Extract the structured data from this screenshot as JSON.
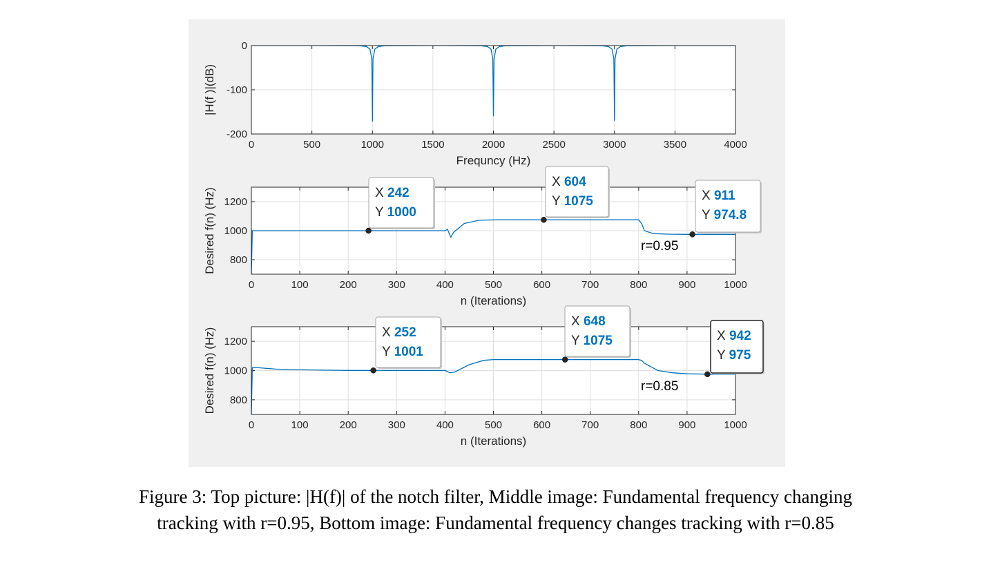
{
  "caption": {
    "line1": "Figure 3: Top picture: |H(f)| of the notch filter, Middle image: Fundamental frequency changing",
    "line2": "tracking with r=0.95, Bottom image: Fundamental frequency changes tracking with r=0.85"
  },
  "chart_data": [
    {
      "type": "line",
      "xlabel": "Frequncy (Hz)",
      "ylabel": "|H(f )|(dB)",
      "xlim": [
        0,
        4000
      ],
      "ylim": [
        -200,
        0
      ],
      "xticks": [
        "0",
        "500",
        "1000",
        "1500",
        "2000",
        "2500",
        "3000",
        "3500",
        "4000"
      ],
      "yticks": [
        "0",
        "-100",
        "-200"
      ],
      "grid": true,
      "color": "#0072bd",
      "series": [
        {
          "x": [
            0,
            500,
            900,
            950,
            980,
            995,
            1000,
            1005,
            1020,
            1050,
            1100,
            1500,
            1900,
            1950,
            1980,
            1995,
            2000,
            2005,
            2020,
            2050,
            2100,
            2500,
            2900,
            2950,
            2980,
            2995,
            3000,
            3005,
            3020,
            3050,
            3100,
            3500,
            4000
          ],
          "y": [
            0,
            0,
            -0.5,
            -2,
            -8,
            -30,
            -172,
            -30,
            -8,
            -2,
            -0.5,
            0,
            -0.5,
            -2,
            -8,
            -30,
            -160,
            -30,
            -8,
            -2,
            -0.5,
            0,
            -0.5,
            -2,
            -8,
            -30,
            -170,
            -30,
            -8,
            -2,
            -0.5,
            0,
            0
          ]
        }
      ]
    },
    {
      "type": "line",
      "xlabel": "n (Iterations)",
      "ylabel": "Desired f(n) (Hz)",
      "xlim": [
        0,
        1000
      ],
      "ylim": [
        700,
        1300
      ],
      "xticks": [
        "0",
        "100",
        "200",
        "300",
        "400",
        "500",
        "600",
        "700",
        "800",
        "900",
        "1000"
      ],
      "yticks": [
        "1200",
        "1000",
        "800"
      ],
      "grid": true,
      "color": "#0072bd",
      "annotation": "r=0.95",
      "series": [
        {
          "x": [
            0,
            2,
            5,
            100,
            200,
            300,
            400,
            405,
            412,
            418,
            440,
            470,
            500,
            600,
            700,
            800,
            806,
            812,
            830,
            860,
            900,
            950,
            1000
          ],
          "y": [
            700,
            1000,
            1000,
            1000,
            1000,
            1000,
            1000,
            1010,
            955,
            990,
            1050,
            1072,
            1075,
            1075,
            1075,
            1075,
            1050,
            1000,
            980,
            976,
            975,
            975,
            975
          ]
        }
      ],
      "datatips": [
        {
          "x_label": "X",
          "x_value": "242",
          "y_label": "Y",
          "y_value": "1000",
          "x": 242,
          "y": 1000
        },
        {
          "x_label": "X",
          "x_value": "604",
          "y_label": "Y",
          "y_value": "1075",
          "x": 604,
          "y": 1075
        },
        {
          "x_label": "X",
          "x_value": "911",
          "y_label": "Y",
          "y_value": "974.8",
          "x": 911,
          "y": 974.8
        }
      ]
    },
    {
      "type": "line",
      "xlabel": "n (Iterations)",
      "ylabel": "Desired f(n) (Hz)",
      "xlim": [
        0,
        1000
      ],
      "ylim": [
        700,
        1300
      ],
      "xticks": [
        "0",
        "100",
        "200",
        "300",
        "400",
        "500",
        "600",
        "700",
        "800",
        "900",
        "1000"
      ],
      "yticks": [
        "1200",
        "1000",
        "800"
      ],
      "grid": true,
      "color": "#0072bd",
      "annotation": "r=0.85",
      "series": [
        {
          "x": [
            0,
            2,
            5,
            50,
            100,
            200,
            300,
            400,
            410,
            420,
            450,
            480,
            500,
            600,
            700,
            800,
            806,
            812,
            840,
            870,
            900,
            950,
            1000
          ],
          "y": [
            700,
            1020,
            1022,
            1010,
            1005,
            1001,
            1001,
            1001,
            985,
            990,
            1040,
            1070,
            1075,
            1075,
            1075,
            1075,
            1070,
            1050,
            1000,
            985,
            978,
            975,
            975
          ]
        }
      ],
      "datatips": [
        {
          "x_label": "X",
          "x_value": "252",
          "y_label": "Y",
          "y_value": "1001",
          "x": 252,
          "y": 1001
        },
        {
          "x_label": "X",
          "x_value": "648",
          "y_label": "Y",
          "y_value": "1075",
          "x": 648,
          "y": 1075
        },
        {
          "x_label": "X",
          "x_value": "942",
          "y_label": "Y",
          "y_value": "975",
          "x": 942,
          "y": 975
        }
      ]
    }
  ]
}
